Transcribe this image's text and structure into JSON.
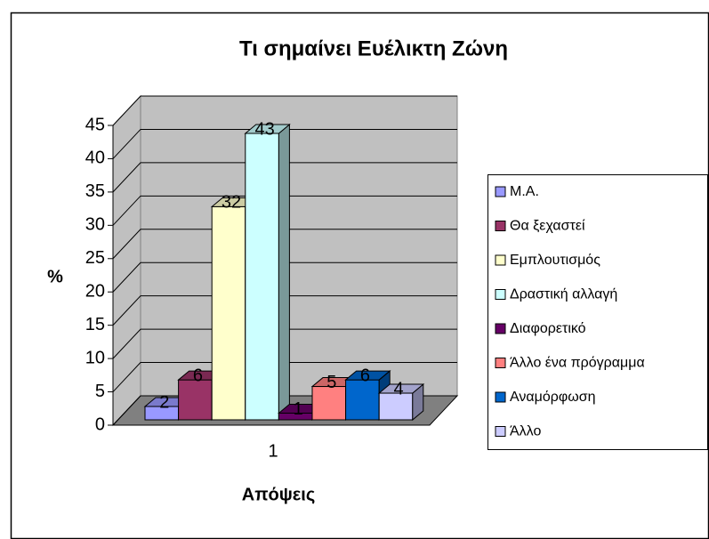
{
  "chart_data": {
    "type": "bar3d",
    "title": "Τι σημαίνει Ευέλικτη Ζώνη",
    "x_label": "Απόψεις",
    "y_label": "%",
    "categories": [
      "1"
    ],
    "series": [
      {
        "name": "Μ.Α.",
        "color": "#9999ff",
        "values": [
          2
        ]
      },
      {
        "name": "Θα ξεχαστεί",
        "color": "#993366",
        "values": [
          6
        ]
      },
      {
        "name": "Εμπλουτισμός",
        "color": "#ffffcc",
        "values": [
          32
        ]
      },
      {
        "name": "Δραστική αλλαγή",
        "color": "#ccffff",
        "values": [
          43
        ]
      },
      {
        "name": "Διαφορετικό",
        "color": "#660066",
        "values": [
          1
        ]
      },
      {
        "name": "Άλλο ένα πρόγραμμα",
        "color": "#ff8080",
        "values": [
          5
        ]
      },
      {
        "name": "Αναμόρφωση",
        "color": "#0066cc",
        "values": [
          6
        ]
      },
      {
        "name": "Άλλο",
        "color": "#ccccff",
        "values": [
          4
        ]
      }
    ],
    "ylim": [
      0,
      45
    ],
    "yticks": [
      0,
      5,
      10,
      15,
      20,
      25,
      30,
      35,
      40,
      45
    ],
    "grid": true,
    "legend": "right"
  }
}
